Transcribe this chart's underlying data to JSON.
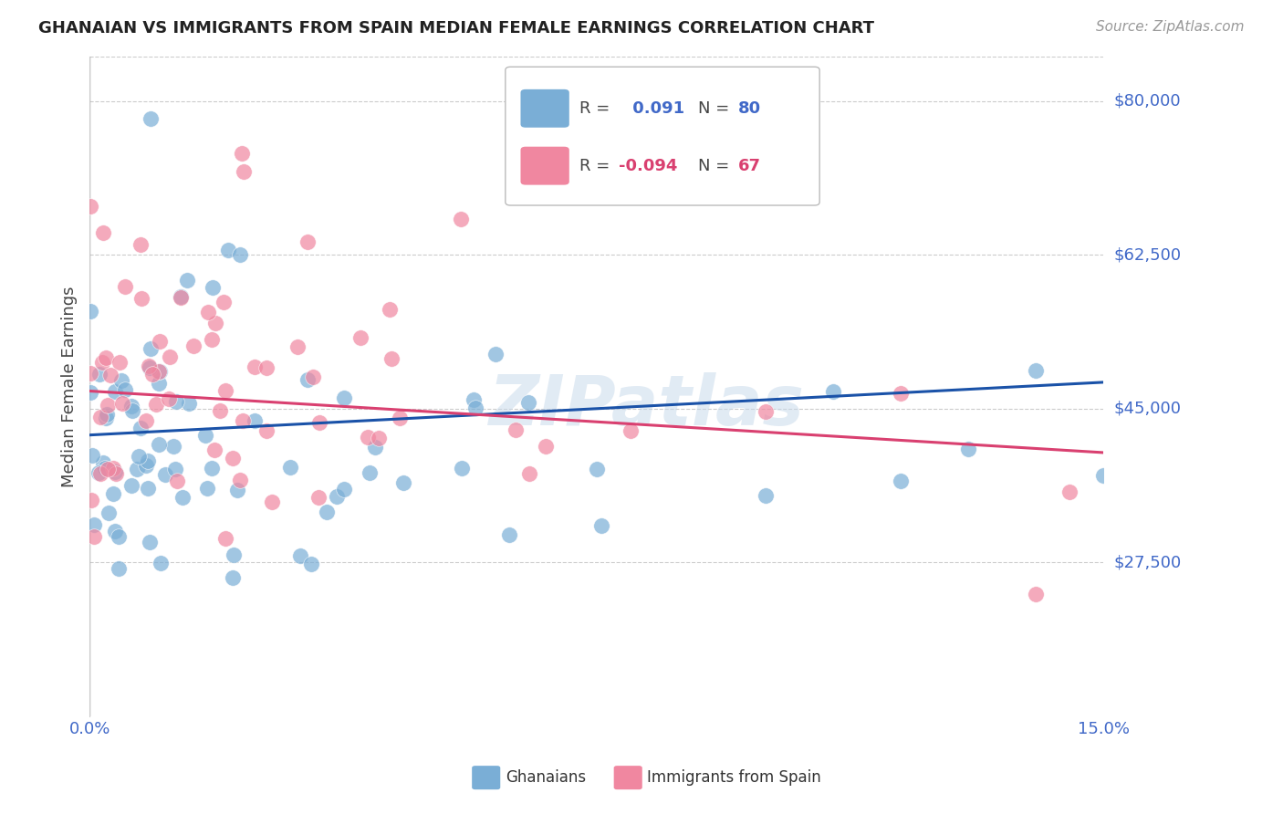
{
  "title": "GHANAIAN VS IMMIGRANTS FROM SPAIN MEDIAN FEMALE EARNINGS CORRELATION CHART",
  "source_text": "Source: ZipAtlas.com",
  "ylabel": "Median Female Earnings",
  "xlim": [
    0.0,
    0.15
  ],
  "ylim": [
    10000,
    85000
  ],
  "ytick_vals": [
    27500,
    45000,
    62500,
    80000
  ],
  "ytick_labels": [
    "$27,500",
    "$45,000",
    "$62,500",
    "$80,000"
  ],
  "xtick_vals": [
    0.0,
    0.03,
    0.06,
    0.09,
    0.12,
    0.15
  ],
  "xtick_labels": [
    "0.0%",
    "",
    "",
    "",
    "",
    "15.0%"
  ],
  "blue_R": 0.091,
  "blue_N": 80,
  "pink_R": -0.094,
  "pink_N": 67,
  "blue_color": "#7aaed6",
  "pink_color": "#f087a0",
  "blue_line_color": "#1a52a8",
  "pink_line_color": "#d94070",
  "tick_label_color": "#4169c8",
  "watermark_text": "ZIPatlas",
  "legend_blue_label": "Ghanaians",
  "legend_pink_label": "Immigrants from Spain",
  "blue_line_y0": 42000,
  "blue_line_y1": 48000,
  "pink_line_y0": 47000,
  "pink_line_y1": 40000,
  "seed": 42
}
